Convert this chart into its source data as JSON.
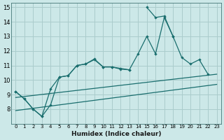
{
  "title": "",
  "xlabel": "Humidex (Indice chaleur)",
  "bg_color": "#cce8e8",
  "grid_color": "#aacccc",
  "line_color": "#1a6e6e",
  "xlim": [
    -0.5,
    23.5
  ],
  "ylim": [
    7,
    15.3
  ],
  "xticks": [
    0,
    1,
    2,
    3,
    4,
    5,
    6,
    7,
    8,
    9,
    10,
    11,
    12,
    13,
    14,
    15,
    16,
    17,
    18,
    19,
    20,
    21,
    22,
    23
  ],
  "yticks": [
    8,
    9,
    10,
    11,
    12,
    13,
    14,
    15
  ],
  "line1_x": [
    0,
    1,
    2,
    3,
    4,
    5,
    6,
    7,
    8,
    9,
    10,
    11,
    12,
    13,
    14,
    15,
    16,
    17,
    18,
    19,
    20,
    21,
    22
  ],
  "line1_y": [
    9.2,
    8.7,
    8.0,
    7.5,
    8.3,
    10.2,
    10.3,
    11.0,
    11.1,
    11.4,
    10.9,
    10.9,
    10.8,
    10.7,
    11.8,
    13.0,
    11.8,
    14.3,
    13.0,
    11.55,
    11.1,
    11.4,
    10.4
  ],
  "line2_x": [
    0,
    1,
    2,
    3,
    4,
    5,
    6,
    7,
    8,
    9,
    10,
    11,
    12,
    13,
    15,
    16,
    17,
    18
  ],
  "line2_y": [
    9.2,
    8.7,
    8.0,
    7.5,
    9.4,
    10.2,
    10.3,
    11.0,
    11.1,
    11.45,
    10.9,
    10.9,
    10.75,
    10.7,
    15.0,
    14.3,
    14.4,
    13.0
  ],
  "line3_x": [
    0,
    23
  ],
  "line3_y": [
    8.8,
    10.4
  ],
  "line4_x": [
    0,
    23
  ],
  "line4_y": [
    7.9,
    9.7
  ]
}
